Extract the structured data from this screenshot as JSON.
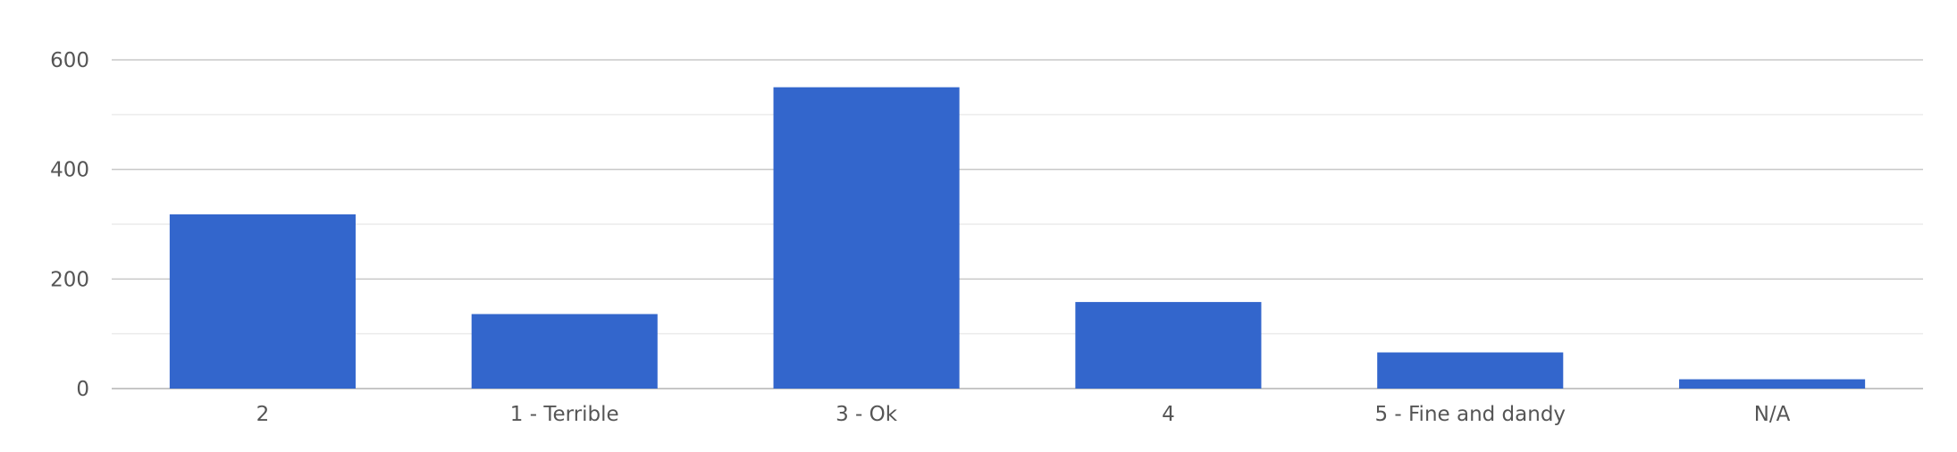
{
  "chart_data": {
    "type": "bar",
    "categories": [
      "2",
      "1 - Terrible",
      "3 - Ok",
      "4",
      "5 - Fine and dandy",
      "N/A"
    ],
    "series": [
      {
        "values": [
          318,
          136,
          550,
          158,
          66,
          17
        ]
      }
    ],
    "title": "",
    "xlabel": "",
    "ylabel": "",
    "ylim": [
      0,
      600
    ],
    "yticks": [
      0,
      200,
      400,
      600
    ],
    "minor_gridlines": true,
    "grid": true,
    "legend": "none",
    "bar_color": "#3366cc"
  }
}
